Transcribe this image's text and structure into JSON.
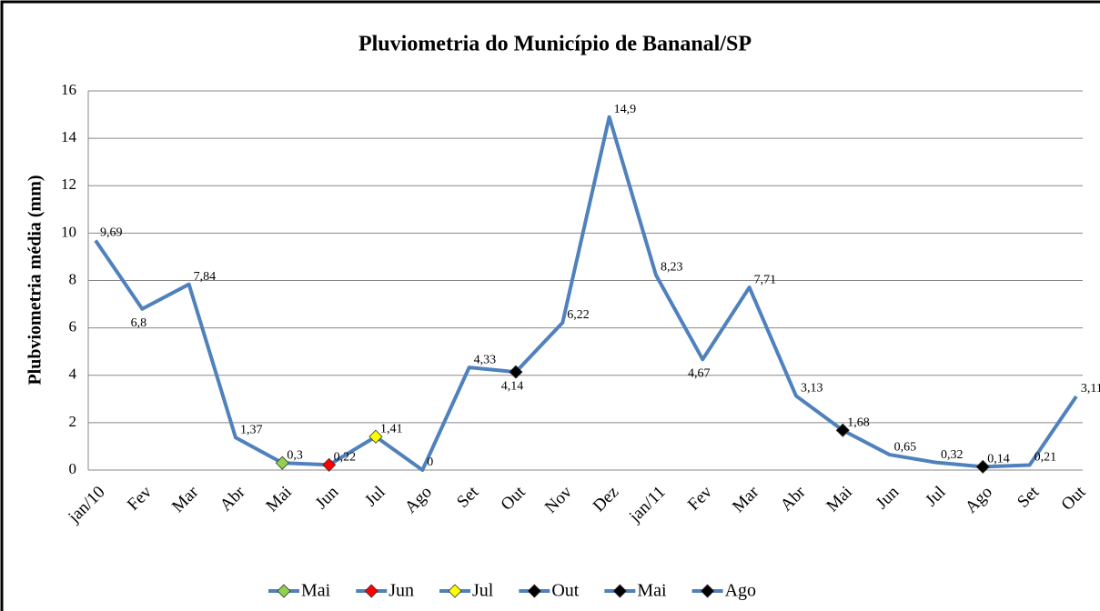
{
  "chart_data": {
    "type": "line",
    "title": "Pluviometria do Município de Bananal/SP",
    "y_label": "Plubviometria  média   (mm)",
    "categories": [
      "jan/10",
      "Fev",
      "Mar",
      "Abr",
      "Mai",
      "Jun",
      "Jul",
      "Ago",
      "Set",
      "Out",
      "Nov",
      "Dez",
      "jan/11",
      "Fev",
      "Mar",
      "Abr",
      "Mai",
      "Jun",
      "Jul",
      "Ago",
      "Set",
      "Out"
    ],
    "values": [
      9.69,
      6.8,
      7.84,
      1.37,
      0.3,
      0.22,
      1.41,
      0,
      4.33,
      4.14,
      6.22,
      14.9,
      8.23,
      4.67,
      7.71,
      3.13,
      1.68,
      0.65,
      0.32,
      0.14,
      0.21,
      3.11
    ],
    "value_labels": [
      "9,69",
      "6,8",
      "7,84",
      "1,37",
      "0,3",
      "0,22",
      "1,41",
      "0",
      "4,33",
      "4,14",
      "6,22",
      "14,9",
      "8,23",
      "4,67",
      "7,71",
      "3,13",
      "1,68",
      "0,65",
      "0,32",
      "0,14",
      "0,21",
      "3,11"
    ],
    "color": "#4f81bd",
    "series": [
      {
        "name": "Mai",
        "color": "#92d050",
        "values": [
          null,
          null,
          null,
          null,
          0.3,
          null,
          null,
          null,
          null,
          null,
          null,
          null,
          null,
          null,
          null,
          null,
          null,
          null,
          null,
          null,
          null,
          null
        ]
      },
      {
        "name": "Jun",
        "color": "#ff0000",
        "values": [
          null,
          null,
          null,
          null,
          null,
          0.22,
          null,
          null,
          null,
          null,
          null,
          null,
          null,
          null,
          null,
          null,
          null,
          null,
          null,
          null,
          null,
          null
        ]
      },
      {
        "name": "Jul",
        "color": "#ffff00",
        "values": [
          null,
          null,
          null,
          null,
          null,
          null,
          1.41,
          null,
          null,
          null,
          null,
          null,
          null,
          null,
          null,
          null,
          null,
          null,
          null,
          null,
          null,
          null
        ]
      },
      {
        "name": "Out",
        "color": "#000000",
        "values": [
          null,
          null,
          null,
          null,
          null,
          null,
          null,
          null,
          null,
          4.14,
          null,
          null,
          null,
          null,
          null,
          null,
          null,
          null,
          null,
          null,
          null,
          null
        ]
      },
      {
        "name": "Mai",
        "color": "#000000",
        "values": [
          null,
          null,
          null,
          null,
          null,
          null,
          null,
          null,
          null,
          null,
          null,
          null,
          null,
          null,
          null,
          null,
          1.68,
          null,
          null,
          null,
          null,
          null
        ]
      },
      {
        "name": "Ago",
        "color": "#000000",
        "values": [
          null,
          null,
          null,
          null,
          null,
          null,
          null,
          null,
          null,
          null,
          null,
          null,
          null,
          null,
          null,
          null,
          null,
          null,
          null,
          0.14,
          null,
          null
        ]
      }
    ],
    "ylim": [
      0,
      16
    ],
    "yticks": [
      0,
      2,
      4,
      6,
      8,
      10,
      12,
      14,
      16
    ],
    "grid": true,
    "legend": "bottom"
  }
}
